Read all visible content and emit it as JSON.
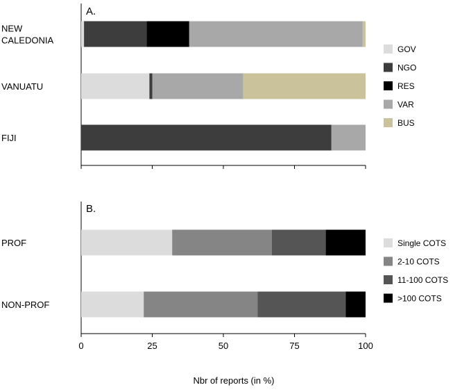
{
  "xlabel": "Nbr of reports (in %)",
  "chart_data": [
    {
      "type": "bar",
      "orientation": "horizontal",
      "stacked": true,
      "panel_label": "A.",
      "categories": [
        [
          "NEW",
          "CALEDONIA"
        ],
        [
          "VANUATU"
        ],
        [
          "FIJI"
        ]
      ],
      "series": [
        {
          "name": "GOV",
          "color": "#dcdcdc",
          "values": [
            1,
            24,
            0
          ]
        },
        {
          "name": "NGO",
          "color": "#3d3d3d",
          "values": [
            22,
            1,
            88
          ]
        },
        {
          "name": "RES",
          "color": "#000000",
          "values": [
            15,
            0,
            0
          ]
        },
        {
          "name": "VAR",
          "color": "#a8a8a8",
          "values": [
            61,
            32,
            12
          ]
        },
        {
          "name": "BUS",
          "color": "#c9c29a",
          "values": [
            1,
            43,
            0
          ]
        }
      ],
      "xlim": [
        0,
        100
      ],
      "legend": "right"
    },
    {
      "type": "bar",
      "orientation": "horizontal",
      "stacked": true,
      "panel_label": "B.",
      "categories": [
        [
          "PROF"
        ],
        [
          "NON-PROF"
        ]
      ],
      "series": [
        {
          "name": "Single COTS",
          "color": "#dcdcdc",
          "values": [
            32,
            22
          ]
        },
        {
          "name": "2-10 COTS",
          "color": "#858585",
          "values": [
            35,
            40
          ]
        },
        {
          "name": "11-100 COTS",
          "color": "#555555",
          "values": [
            19,
            31
          ]
        },
        {
          "name": ">100 COTS",
          "color": "#000000",
          "values": [
            14,
            7
          ]
        }
      ],
      "xlim": [
        0,
        100
      ],
      "xticks": [
        "0",
        "25",
        "50",
        "75",
        "100"
      ],
      "legend": "right"
    }
  ]
}
